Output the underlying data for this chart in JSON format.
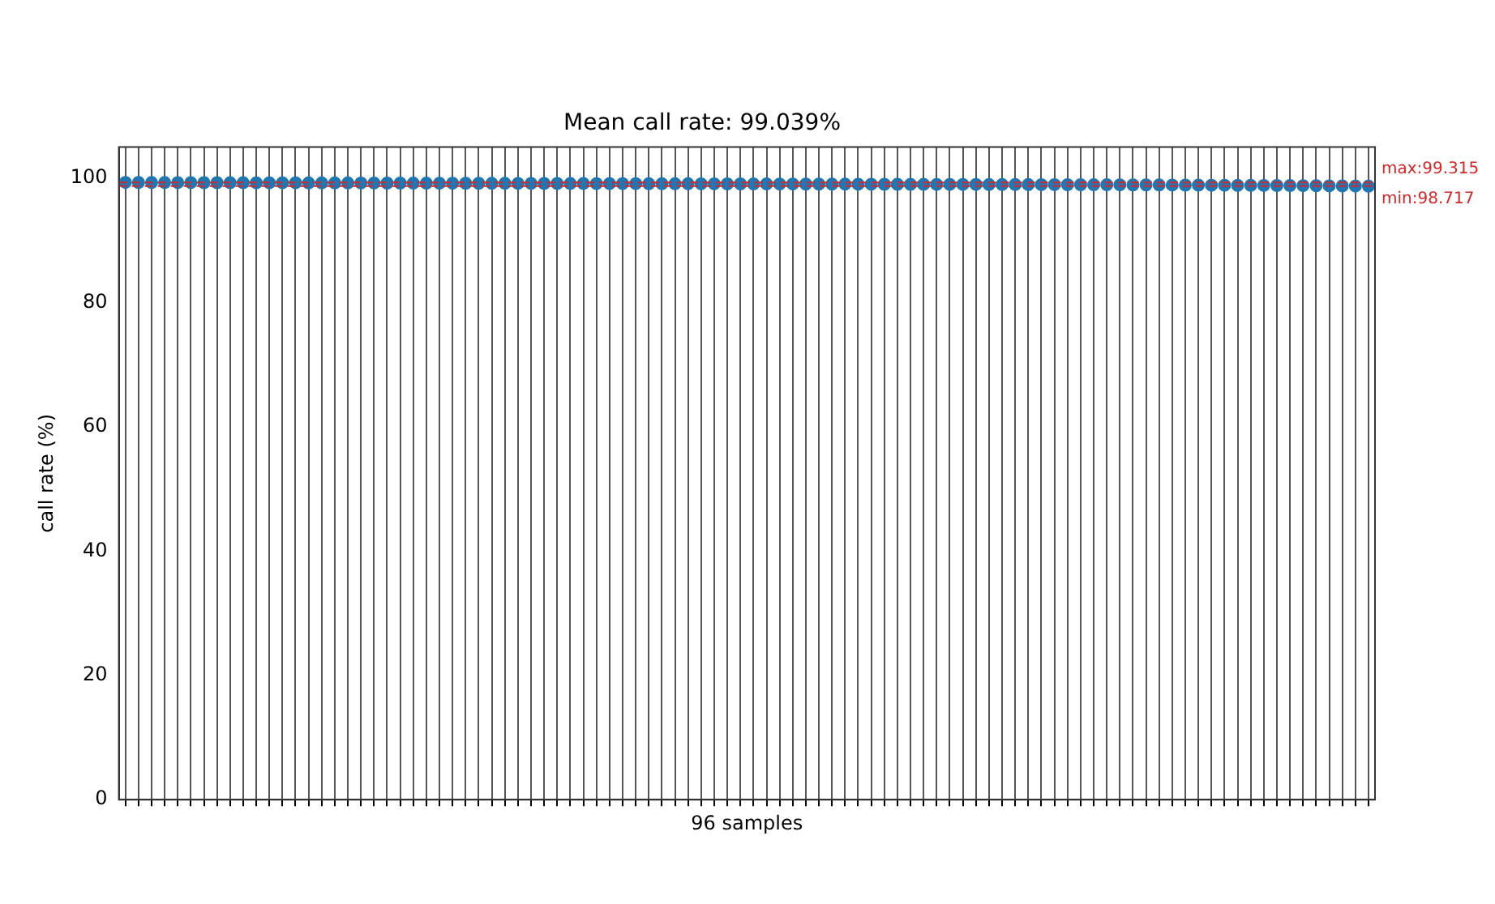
{
  "chart_data": {
    "type": "scatter",
    "title": "Mean call rate: 99.039%",
    "xlabel": "96 samples",
    "ylabel": "call rate (%)",
    "categories": [
      null,
      null,
      null,
      null,
      null,
      null,
      null,
      null,
      null,
      null,
      null,
      null,
      null,
      null,
      null,
      null,
      null,
      null,
      null,
      null,
      null,
      null,
      null,
      null,
      null,
      null,
      null,
      null,
      null,
      null,
      null,
      null,
      null,
      null,
      null,
      null,
      null,
      null,
      null,
      null,
      null,
      null,
      null,
      null,
      null,
      null,
      null,
      null,
      null,
      null,
      null,
      null,
      null,
      null,
      null,
      null,
      null,
      null,
      null,
      null,
      null,
      null,
      null,
      null,
      null,
      null,
      null,
      null,
      null,
      null,
      null,
      null,
      null,
      null,
      null,
      null,
      null,
      null,
      null,
      null,
      null,
      null,
      null,
      null,
      null,
      null,
      null,
      null,
      null,
      null,
      null,
      null,
      null,
      null,
      null,
      null
    ],
    "series": [
      {
        "color": "#1f77b4",
        "values": [
          99.315,
          99.31,
          99.3,
          99.3,
          99.29,
          99.29,
          99.28,
          99.28,
          99.27,
          99.27,
          99.26,
          99.26,
          99.25,
          99.25,
          99.24,
          99.24,
          99.23,
          99.23,
          99.22,
          99.22,
          99.21,
          99.21,
          99.2,
          99.2,
          99.19,
          99.19,
          99.18,
          99.18,
          99.17,
          99.17,
          99.16,
          99.16,
          99.15,
          99.15,
          99.14,
          99.14,
          99.13,
          99.13,
          99.12,
          99.12,
          99.11,
          99.11,
          99.1,
          99.1,
          99.09,
          99.09,
          99.08,
          99.08,
          99.07,
          99.07,
          99.06,
          99.06,
          99.05,
          99.05,
          99.04,
          99.04,
          99.03,
          99.03,
          99.02,
          99.02,
          99.01,
          99.01,
          99.0,
          99.0,
          98.99,
          98.99,
          98.98,
          98.98,
          98.97,
          98.97,
          98.96,
          98.96,
          98.95,
          98.95,
          98.94,
          98.94,
          98.93,
          98.92,
          98.92,
          98.91,
          98.9,
          98.89,
          98.88,
          98.87,
          98.86,
          98.85,
          98.84,
          98.83,
          98.82,
          98.81,
          98.8,
          98.79,
          98.77,
          98.76,
          98.74,
          98.717
        ]
      }
    ],
    "ylim": [
      0,
      105
    ],
    "yticks": [
      0,
      20,
      40,
      60,
      80,
      100
    ],
    "ref_lines": [
      {
        "axis": "y",
        "value": 99.315,
        "label": "max:99.315",
        "color": "#d62728",
        "line_style": "dashed"
      },
      {
        "axis": "y",
        "value": 98.717,
        "label": "min:98.717",
        "color": "#d62728",
        "line_style": "dashed"
      }
    ],
    "grid": "x",
    "tick_labels": "y",
    "marker": "circle",
    "legend": false
  }
}
